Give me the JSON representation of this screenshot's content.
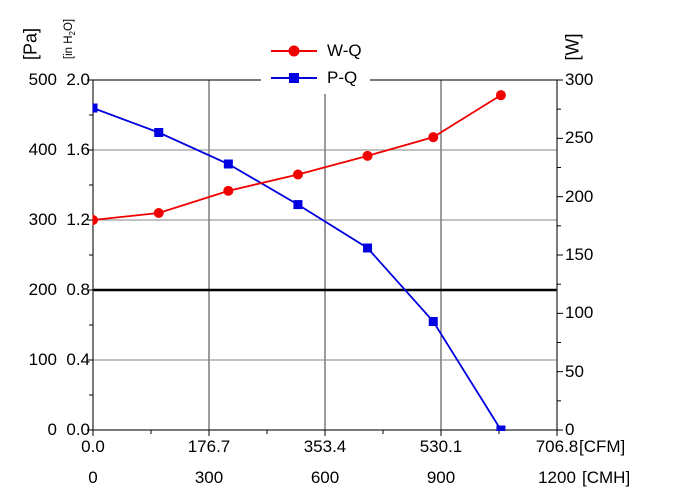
{
  "legend": {
    "items": [
      {
        "label": "W-Q",
        "color": "#f00000",
        "marker": "circle"
      },
      {
        "label": "P-Q",
        "color": "#0000e0",
        "marker": "square"
      }
    ]
  },
  "axes": {
    "left_pa": {
      "unit": "[Pa]",
      "tick_labels": [
        "0",
        "100",
        "200",
        "300",
        "400",
        "500"
      ]
    },
    "left_inh2o": {
      "unit_pre": "[in H",
      "unit_sub": "2",
      "unit_post": "O]",
      "tick_labels": [
        "0.0",
        "0.4",
        "0.8",
        "1.2",
        "1.6",
        "2.0"
      ]
    },
    "right_w": {
      "unit": "[W]",
      "tick_labels": [
        "0",
        "50",
        "100",
        "150",
        "200",
        "250",
        "300"
      ]
    },
    "bottom_cfm": {
      "unit": "[CFM]",
      "tick_labels": [
        "0.0",
        "176.7",
        "353.4",
        "530.1",
        "706.8"
      ]
    },
    "bottom_cmh": {
      "unit": "[CMH]",
      "tick_labels": [
        "0",
        "300",
        "600",
        "900",
        "1200"
      ]
    }
  },
  "chart_data": {
    "type": "line",
    "x_axis": {
      "range_cmh": [
        0,
        1200
      ],
      "range_cfm": [
        0,
        706.8
      ],
      "ticks_cmh": [
        0,
        300,
        600,
        900,
        1200
      ],
      "ticks_cfm": [
        0,
        176.7,
        353.4,
        530.1,
        706.8
      ]
    },
    "y_left": {
      "range_pa": [
        0,
        500
      ],
      "range_inh2o": [
        0,
        2.0
      ]
    },
    "y_right": {
      "range_w": [
        0,
        300
      ],
      "tick_step_w": 50
    },
    "series": [
      {
        "name": "W-Q",
        "axis": "right_w",
        "units": "W",
        "color": "#f00000",
        "marker": "circle",
        "x_cmh": [
          0,
          170,
          350,
          530,
          710,
          880,
          1055
        ],
        "values": [
          180,
          186,
          205,
          219,
          235,
          251,
          287
        ]
      },
      {
        "name": "P-Q",
        "axis": "left_pa",
        "units": "Pa",
        "color": "#0000e0",
        "marker": "square",
        "x_cmh": [
          0,
          170,
          350,
          530,
          710,
          880,
          1055
        ],
        "values": [
          460,
          425,
          380,
          322,
          260,
          155,
          0
        ]
      }
    ],
    "grid": {
      "vertical_cmh": [
        300,
        600,
        900
      ],
      "horizontal_pa": [
        100,
        300,
        400
      ],
      "horizontal_pa_bold": [
        200
      ]
    },
    "legend_position": "top-center-overlapping-frame"
  }
}
